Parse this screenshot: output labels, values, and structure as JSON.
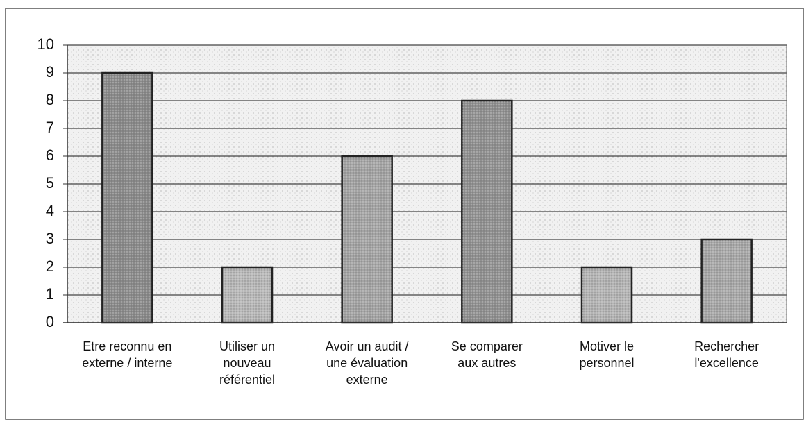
{
  "chart_data": {
    "type": "bar",
    "categories": [
      "Etre reconnu en\nexterne / interne",
      "Utiliser un\nnouveau\nréférentiel",
      "Avoir un audit /\nune évaluation\nexterne",
      "Se comparer\naux autres",
      "Motiver le\npersonnel",
      "Rechercher\nl'excellence"
    ],
    "values": [
      9,
      2,
      6,
      8,
      2,
      3
    ],
    "colors": [
      "#8a8a8a",
      "#b8b8b8",
      "#a4a4a4",
      "#909090",
      "#b4b4b4",
      "#a8a8a8"
    ],
    "ylim": [
      0,
      10
    ],
    "yticks": [
      0,
      1,
      2,
      3,
      4,
      5,
      6,
      7,
      8,
      9,
      10
    ],
    "grid": true
  }
}
